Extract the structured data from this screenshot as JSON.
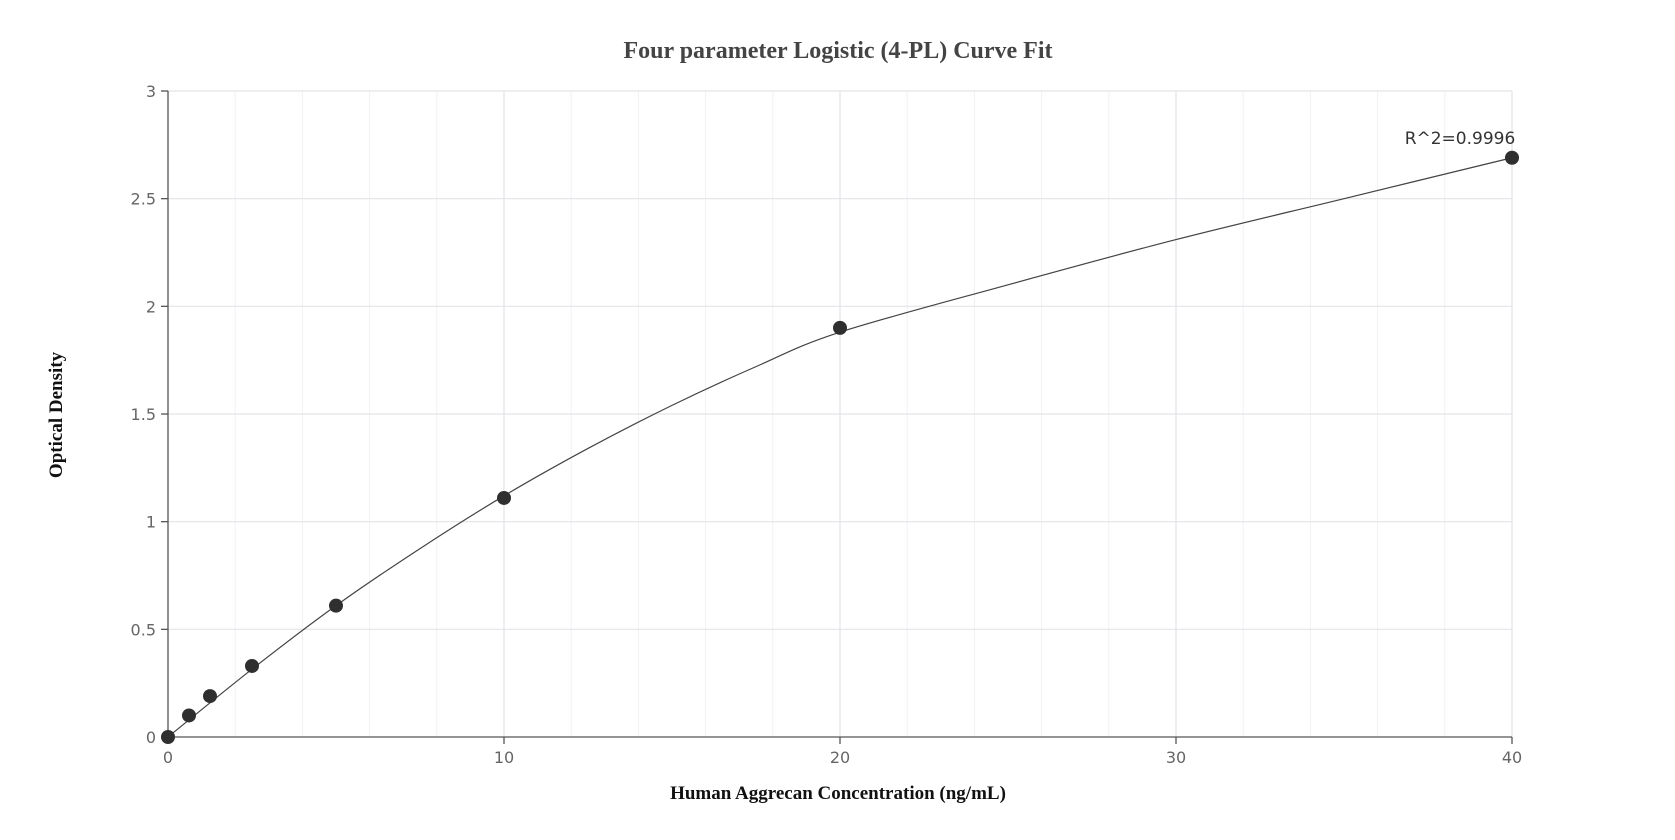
{
  "chart_data": {
    "type": "scatter",
    "title": "Four parameter Logistic (4-PL) Curve Fit",
    "xlabel": "Human Aggrecan Concentration (ng/mL)",
    "ylabel": "Optical Density",
    "xlim": [
      0,
      40
    ],
    "ylim": [
      0,
      3
    ],
    "x_ticks": [
      0,
      10,
      20,
      30,
      40
    ],
    "y_ticks": [
      0,
      0.5,
      1,
      1.5,
      2,
      2.5,
      3
    ],
    "x_tick_labels": [
      "0",
      "10",
      "20",
      "30",
      "40"
    ],
    "y_tick_labels": [
      "0",
      "0.5",
      "1",
      "1.5",
      "2",
      "2.5",
      "3"
    ],
    "x_minor_step": 2,
    "grid": true,
    "legend": "none",
    "series": [
      {
        "points": [
          {
            "x": 0,
            "y": 0.0
          },
          {
            "x": 0.625,
            "y": 0.1
          },
          {
            "x": 1.25,
            "y": 0.19
          },
          {
            "x": 2.5,
            "y": 0.33
          },
          {
            "x": 5,
            "y": 0.61
          },
          {
            "x": 10,
            "y": 1.11
          },
          {
            "x": 20,
            "y": 1.9
          },
          {
            "x": 40,
            "y": 2.69
          }
        ]
      }
    ],
    "fit_curve": {
      "model": "4-PL",
      "points": [
        {
          "x": 0,
          "y": 0.0
        },
        {
          "x": 2.5,
          "y": 0.315
        },
        {
          "x": 5,
          "y": 0.61
        },
        {
          "x": 7.5,
          "y": 0.875
        },
        {
          "x": 10,
          "y": 1.12
        },
        {
          "x": 12.5,
          "y": 1.34
        },
        {
          "x": 15,
          "y": 1.54
        },
        {
          "x": 17.5,
          "y": 1.72
        },
        {
          "x": 20,
          "y": 1.88
        },
        {
          "x": 25,
          "y": 2.1
        },
        {
          "x": 30,
          "y": 2.31
        },
        {
          "x": 35,
          "y": 2.5
        },
        {
          "x": 40,
          "y": 2.69
        }
      ]
    },
    "annotations": [
      {
        "text": "R^2=0.9996",
        "x": 40,
        "y": 2.69
      }
    ],
    "colors": {
      "point": "#2f2f2f",
      "curve": "#444444",
      "grid": "#e3e3e8"
    }
  }
}
